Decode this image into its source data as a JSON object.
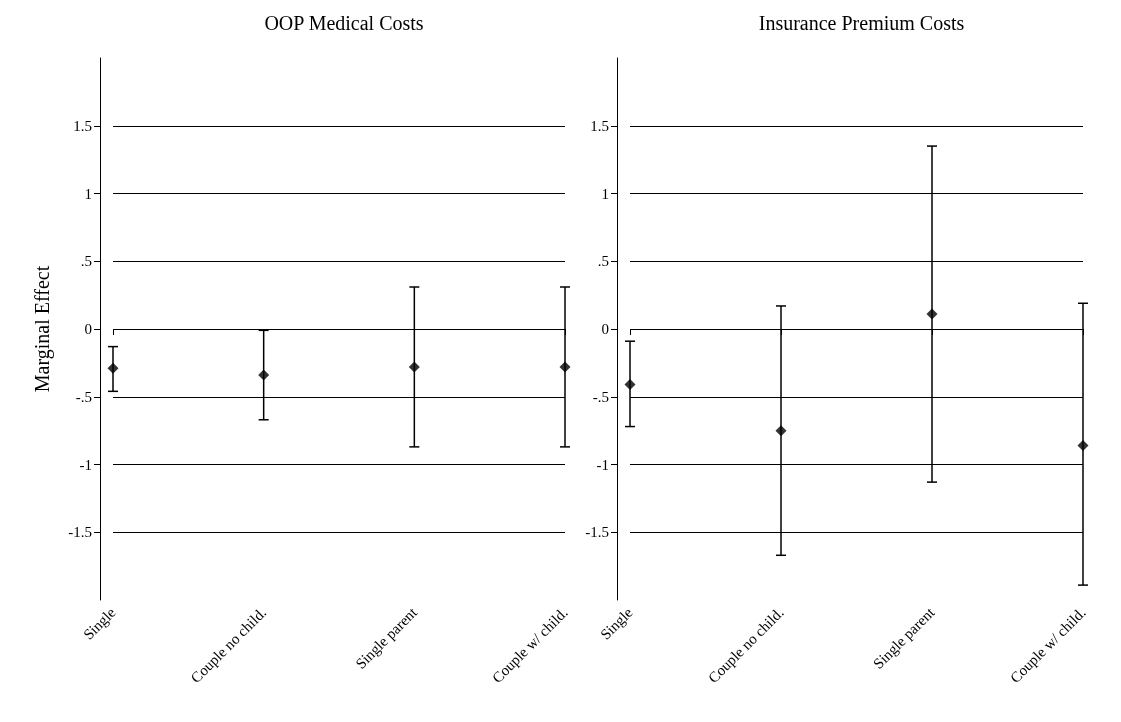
{
  "chart_data": [
    {
      "type": "scatter",
      "title": "OOP Medical Costs",
      "ylabel": "Marginal Effect",
      "categories": [
        "Single",
        "Couple no child.",
        "Single parent",
        "Couple w/ child."
      ],
      "color": "#000000",
      "marker": "diamond",
      "values": [
        -0.29,
        -0.34,
        -0.28,
        -0.28
      ],
      "errors": [
        [
          -0.46,
          -0.13
        ],
        [
          -0.67,
          -0.01
        ],
        [
          -0.87,
          0.31
        ],
        [
          -0.87,
          0.31
        ]
      ],
      "ylim": [
        -2,
        2
      ],
      "yticks": [
        {
          "value": -1.5,
          "label": "-1.5"
        },
        {
          "value": -1,
          "label": "-1"
        },
        {
          "value": -0.5,
          "label": "-.5"
        },
        {
          "value": 0,
          "label": "0"
        },
        {
          "value": 0.5,
          "label": ".5"
        },
        {
          "value": 1,
          "label": "1"
        },
        {
          "value": 1.5,
          "label": "1.5"
        }
      ],
      "grid": "y"
    },
    {
      "type": "scatter",
      "title": "Insurance Premium Costs",
      "categories": [
        "Single",
        "Couple no child.",
        "Single parent",
        "Couple w/ child."
      ],
      "color": "#000000",
      "marker": "diamond",
      "values": [
        -0.41,
        -0.75,
        0.11,
        -0.86
      ],
      "errors": [
        [
          -0.72,
          -0.09
        ],
        [
          -1.67,
          0.17
        ],
        [
          -1.13,
          1.35
        ],
        [
          -1.89,
          0.19
        ]
      ],
      "ylim": [
        -2,
        2
      ],
      "yticks": [
        {
          "value": -1.5,
          "label": "-1.5"
        },
        {
          "value": -1,
          "label": "-1"
        },
        {
          "value": -0.5,
          "label": "-.5"
        },
        {
          "value": 0,
          "label": "0"
        },
        {
          "value": 0.5,
          "label": ".5"
        },
        {
          "value": 1,
          "label": "1"
        },
        {
          "value": 1.5,
          "label": "1.5"
        }
      ],
      "grid": "y"
    }
  ]
}
